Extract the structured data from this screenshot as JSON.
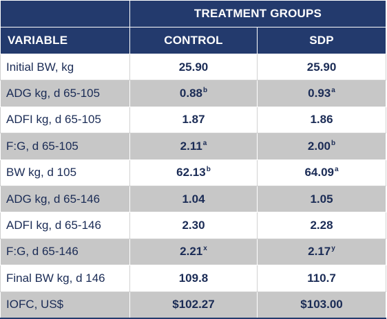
{
  "header": {
    "group_label": "TREATMENT GROUPS",
    "variable_label": "VARIABLE",
    "control_label": "CONTROL",
    "sdp_label": "SDP"
  },
  "rows": [
    {
      "variable": "Initial BW, kg",
      "control": "25.90",
      "control_sup": "",
      "sdp": "25.90",
      "sdp_sup": ""
    },
    {
      "variable": "ADG kg, d 65-105",
      "control": "0.88",
      "control_sup": "b",
      "sdp": "0.93",
      "sdp_sup": "a"
    },
    {
      "variable": "ADFI kg, d 65-105",
      "control": "1.87",
      "control_sup": "",
      "sdp": "1.86",
      "sdp_sup": ""
    },
    {
      "variable": "F:G, d 65-105",
      "control": "2.11",
      "control_sup": "a",
      "sdp": "2.00",
      "sdp_sup": "b"
    },
    {
      "variable": "BW kg, d 105",
      "control": "62.13",
      "control_sup": "b",
      "sdp": "64.09",
      "sdp_sup": "a"
    },
    {
      "variable": "ADG kg, d 65-146",
      "control": "1.04",
      "control_sup": "",
      "sdp": "1.05",
      "sdp_sup": ""
    },
    {
      "variable": "ADFI kg, d 65-146",
      "control": "2.30",
      "control_sup": "",
      "sdp": "2.28",
      "sdp_sup": ""
    },
    {
      "variable": "F:G, d 65-146",
      "control": "2.21",
      "control_sup": "x",
      "sdp": "2.17",
      "sdp_sup": "y"
    },
    {
      "variable": "Final BW kg, d 146",
      "control": "109.8",
      "control_sup": "",
      "sdp": "110.7",
      "sdp_sup": ""
    },
    {
      "variable": "IOFC, US$",
      "control": "$102.27",
      "control_sup": "",
      "sdp": "$103.00",
      "sdp_sup": ""
    }
  ]
}
